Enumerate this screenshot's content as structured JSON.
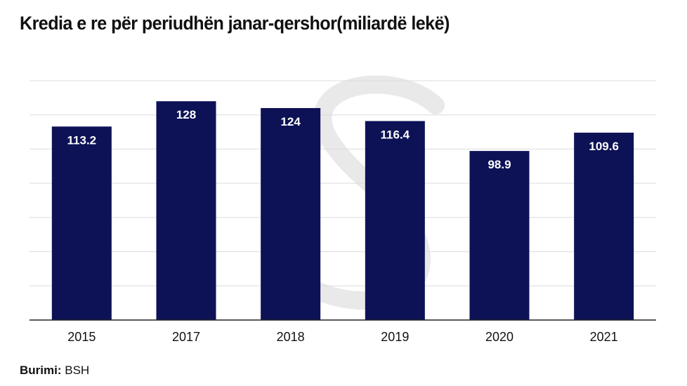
{
  "chart_data": {
    "type": "bar",
    "title": "Kredia e re për periudhën janar-qershor(miliardë lekë)",
    "categories": [
      "2015",
      "2017",
      "2018",
      "2019",
      "2020",
      "2021"
    ],
    "values": [
      113.2,
      128,
      124,
      116.4,
      98.9,
      109.6
    ],
    "value_labels": [
      "113.2",
      "128",
      "124",
      "116.4",
      "98.9",
      "109.6"
    ],
    "xlabel": "",
    "ylabel": "",
    "ylim": [
      0,
      140
    ],
    "gridlines": [
      20,
      40,
      60,
      80,
      100,
      120,
      140
    ],
    "grid": true,
    "legend": "none"
  },
  "colors": {
    "bar": "#0d1256",
    "bar_label": "#ffffff",
    "grid": "#dcdcdc",
    "axis": "#222222",
    "text": "#111111",
    "watermark": "#e9e9e9"
  },
  "source": {
    "label": "Burimi:",
    "value": "BSH"
  }
}
